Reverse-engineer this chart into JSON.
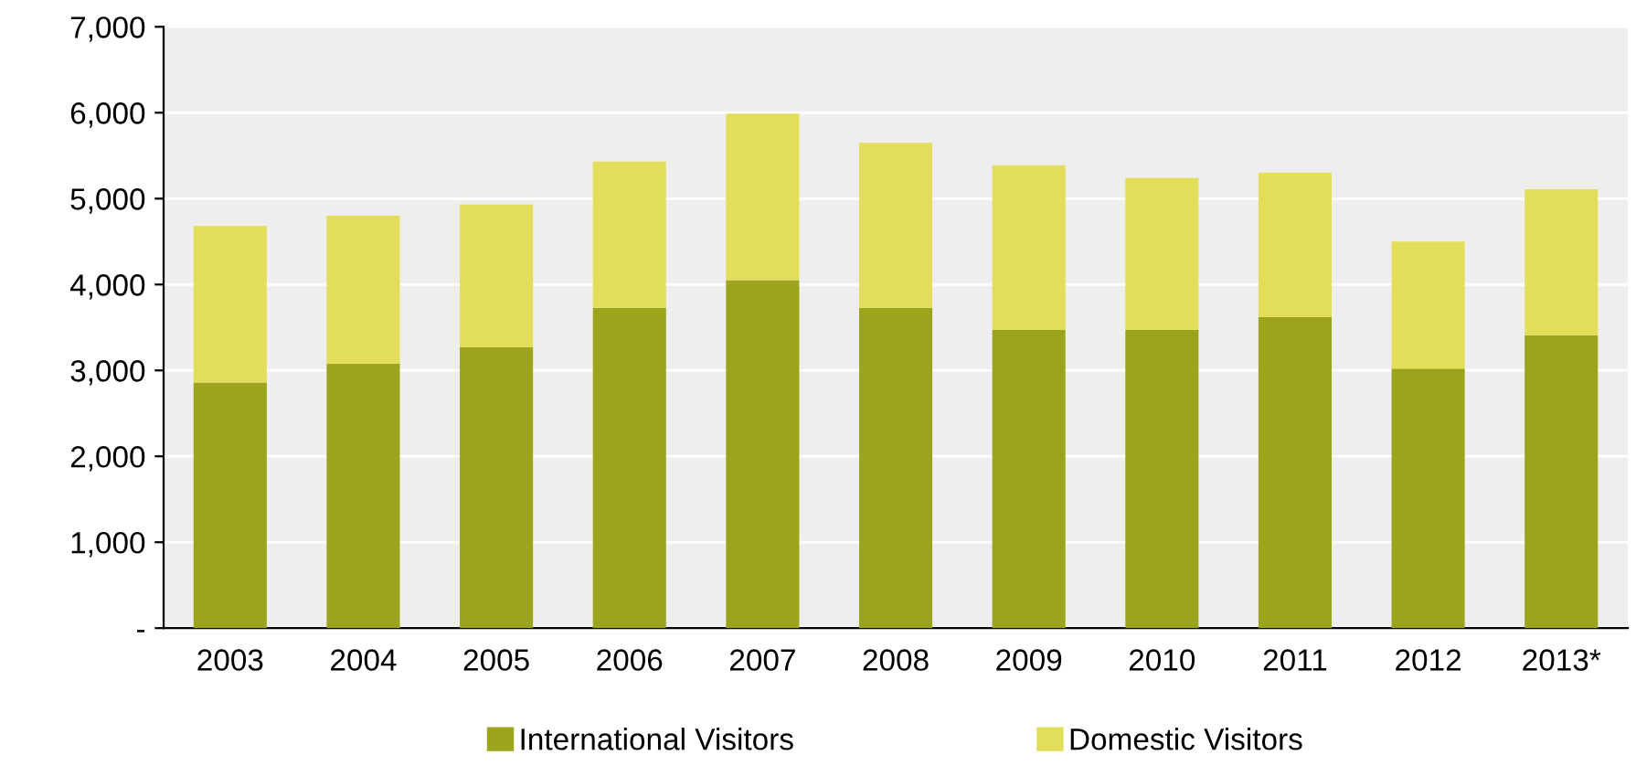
{
  "chart_data": {
    "type": "bar",
    "stacked": true,
    "categories": [
      "2003",
      "2004",
      "2005",
      "2006",
      "2007",
      "2008",
      "2009",
      "2010",
      "2011",
      "2012",
      "2013*"
    ],
    "series": [
      {
        "name": "International Visitors",
        "color": "#9ca41b",
        "values": [
          2860,
          3080,
          3270,
          3730,
          4050,
          3730,
          3470,
          3470,
          3620,
          3020,
          3410
        ]
      },
      {
        "name": "Domestic Visitors",
        "color": "#e2de5a",
        "values": [
          1820,
          1720,
          1660,
          1700,
          1940,
          1920,
          1920,
          1770,
          1680,
          1480,
          1700
        ]
      }
    ],
    "ylim": [
      0,
      7000
    ],
    "yticks": [
      {
        "value": 0,
        "label": "-"
      },
      {
        "value": 1000,
        "label": "1,000"
      },
      {
        "value": 2000,
        "label": "2,000"
      },
      {
        "value": 3000,
        "label": "3,000"
      },
      {
        "value": 4000,
        "label": "4,000"
      },
      {
        "value": 5000,
        "label": "5,000"
      },
      {
        "value": 6000,
        "label": "6,000"
      },
      {
        "value": 7000,
        "label": "7,000"
      }
    ],
    "grid": "y",
    "legend": "bottom"
  }
}
